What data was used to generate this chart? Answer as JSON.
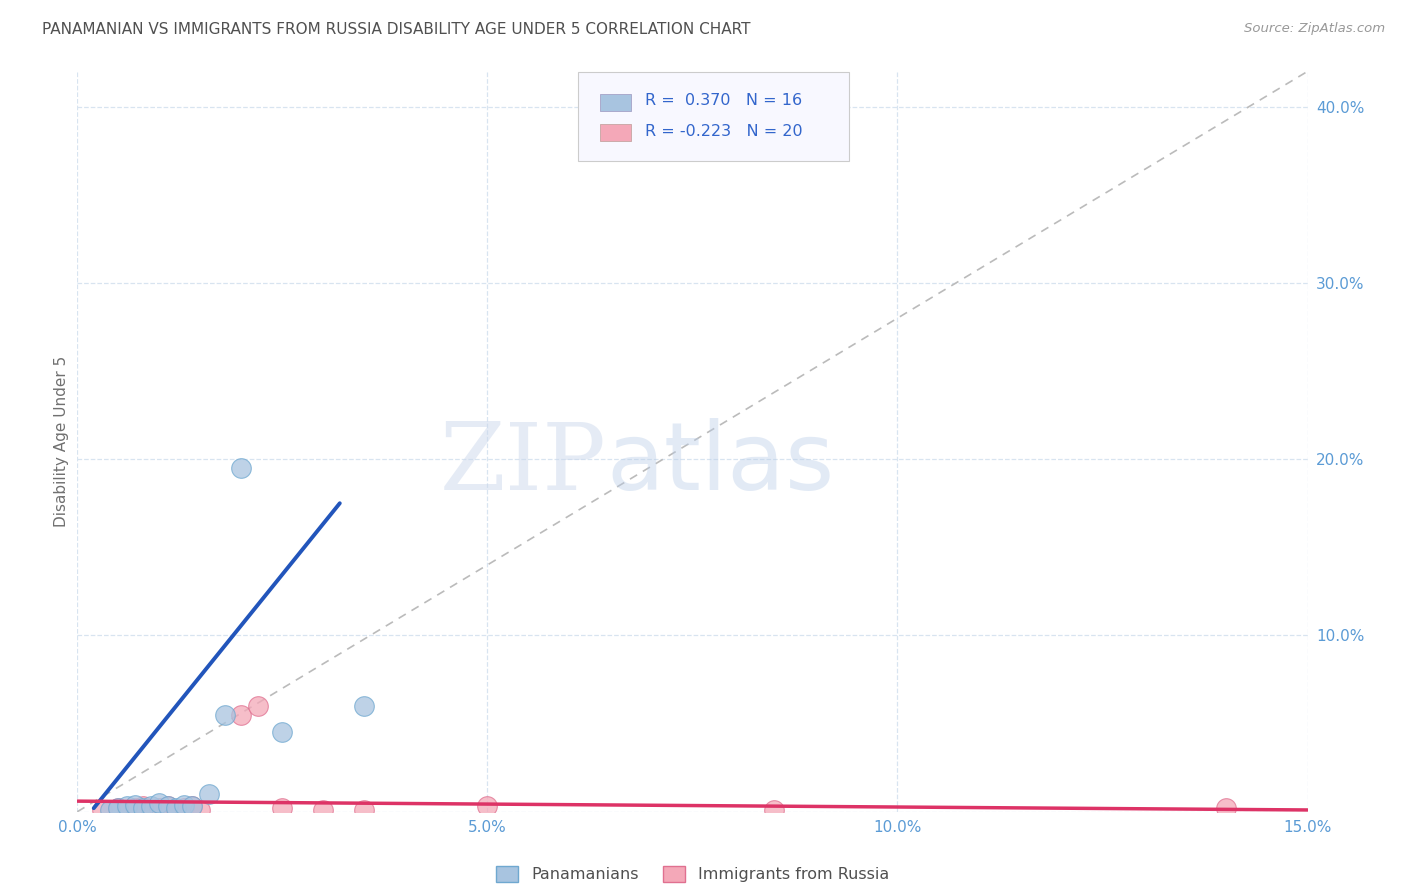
{
  "title": "PANAMANIAN VS IMMIGRANTS FROM RUSSIA DISABILITY AGE UNDER 5 CORRELATION CHART",
  "source": "Source: ZipAtlas.com",
  "ylabel": "Disability Age Under 5",
  "xlim": [
    0.0,
    0.15
  ],
  "ylim": [
    0.0,
    0.42
  ],
  "x_ticks": [
    0.0,
    0.05,
    0.1,
    0.15
  ],
  "x_tick_labels": [
    "0.0%",
    "5.0%",
    "10.0%",
    "15.0%"
  ],
  "y_ticks_right": [
    0.0,
    0.1,
    0.2,
    0.3,
    0.4
  ],
  "y_tick_labels_right": [
    "",
    "10.0%",
    "20.0%",
    "30.0%",
    "40.0%"
  ],
  "panamanian_color": "#a8c4e0",
  "panamanian_edge_color": "#6fa8d0",
  "russia_color": "#f4a8b8",
  "russia_edge_color": "#e07090",
  "panamanian_scatter": [
    [
      0.004,
      0.001
    ],
    [
      0.005,
      0.002
    ],
    [
      0.006,
      0.003
    ],
    [
      0.007,
      0.004
    ],
    [
      0.008,
      0.002
    ],
    [
      0.009,
      0.003
    ],
    [
      0.01,
      0.005
    ],
    [
      0.011,
      0.003
    ],
    [
      0.012,
      0.002
    ],
    [
      0.013,
      0.004
    ],
    [
      0.014,
      0.003
    ],
    [
      0.016,
      0.01
    ],
    [
      0.018,
      0.055
    ],
    [
      0.02,
      0.195
    ],
    [
      0.025,
      0.045
    ],
    [
      0.035,
      0.06
    ]
  ],
  "russia_scatter": [
    [
      0.003,
      0.001
    ],
    [
      0.005,
      0.002
    ],
    [
      0.006,
      0.001
    ],
    [
      0.007,
      0.002
    ],
    [
      0.008,
      0.003
    ],
    [
      0.009,
      0.001
    ],
    [
      0.01,
      0.002
    ],
    [
      0.011,
      0.003
    ],
    [
      0.012,
      0.001
    ],
    [
      0.013,
      0.002
    ],
    [
      0.014,
      0.003
    ],
    [
      0.015,
      0.001
    ],
    [
      0.02,
      0.055
    ],
    [
      0.022,
      0.06
    ],
    [
      0.025,
      0.002
    ],
    [
      0.03,
      0.001
    ],
    [
      0.035,
      0.001
    ],
    [
      0.05,
      0.003
    ],
    [
      0.085,
      0.001
    ],
    [
      0.14,
      0.002
    ]
  ],
  "pan_R": 0.37,
  "pan_N": 16,
  "rus_R": -0.223,
  "rus_N": 20,
  "pan_trend_x": [
    0.002,
    0.032
  ],
  "pan_trend_y": [
    0.002,
    0.175
  ],
  "rus_trend_x": [
    0.0,
    0.15
  ],
  "rus_trend_y": [
    0.006,
    0.001
  ],
  "watermark_zip": "ZIP",
  "watermark_atlas": "atlas",
  "background_color": "#ffffff",
  "grid_color": "#d8e4f0",
  "title_color": "#505050",
  "axis_color": "#5b9bd5",
  "scatter_size": 200
}
